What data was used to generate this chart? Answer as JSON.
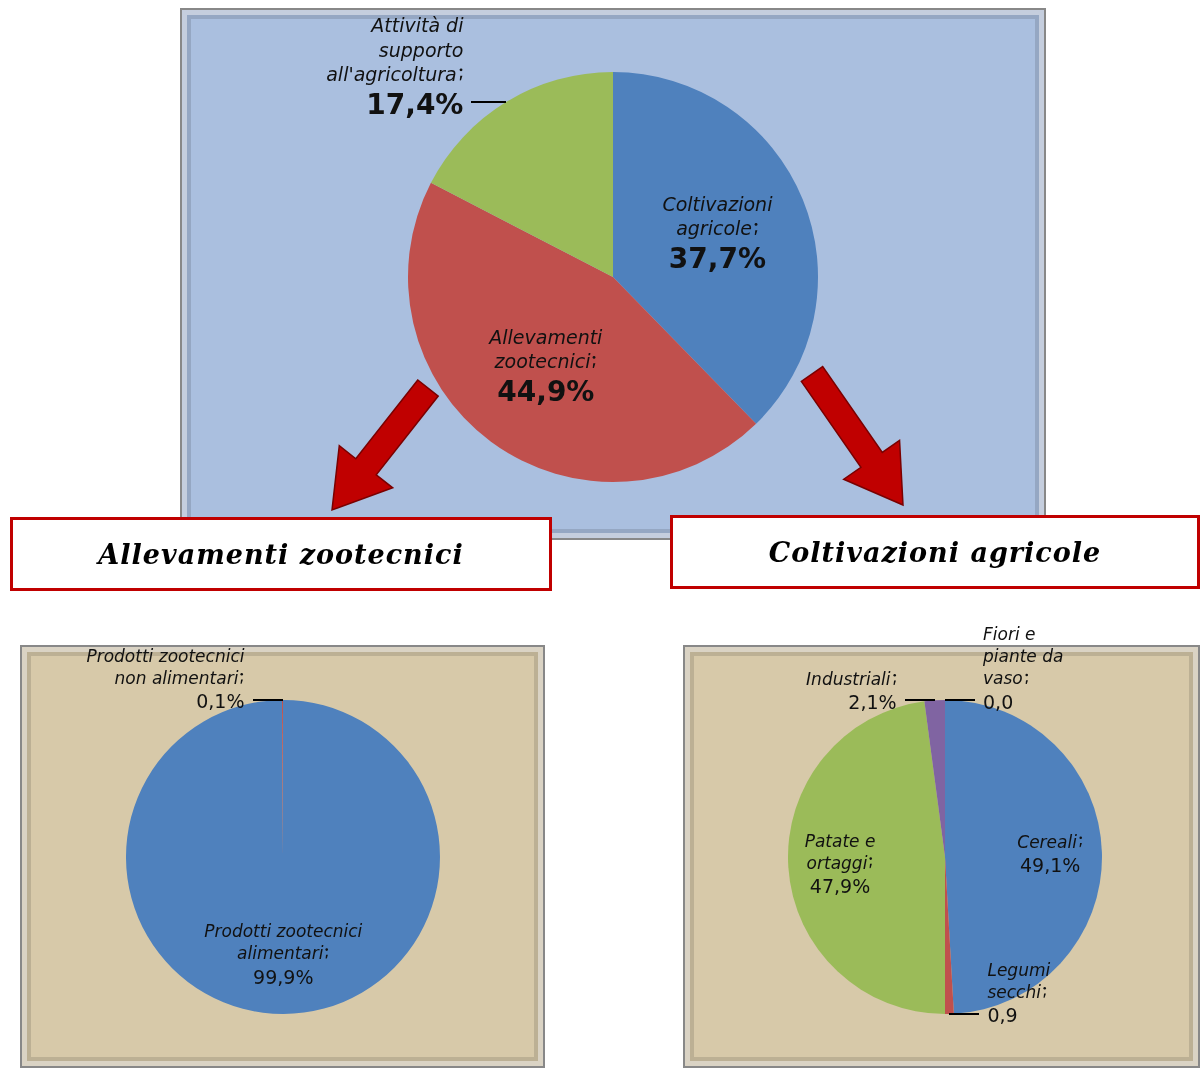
{
  "chart_data": [
    {
      "type": "pie",
      "categories": [
        "Coltivazioni agricole",
        "Allevamenti zootecnici",
        "Attività di supporto all'agricoltura"
      ],
      "values": [
        37.7,
        44.9,
        17.4
      ],
      "value_labels": [
        "37,7%",
        "44,9%",
        "17,4%"
      ],
      "colors": [
        "#4f81bd",
        "#c0504d",
        "#9bbb59"
      ]
    },
    {
      "type": "pie",
      "title": "Allevamenti zootecnici",
      "categories": [
        "Prodotti zootecnici alimentari",
        "Prodotti zootecnici non alimentari"
      ],
      "values": [
        99.9,
        0.1
      ],
      "value_labels": [
        "99,9%",
        "0,1%"
      ],
      "colors": [
        "#4f81bd",
        "#c0504d"
      ]
    },
    {
      "type": "pie",
      "title": "Coltivazioni agricole",
      "categories": [
        "Cereali",
        "Legumi secchi",
        "Patate e ortaggi",
        "Industriali",
        "Fiori e piante da vaso"
      ],
      "values": [
        49.1,
        0.9,
        47.9,
        2.1,
        0.0
      ],
      "value_labels": [
        "49,1%",
        "0,9",
        "47,9%",
        "2,1%",
        "0,0"
      ],
      "colors": [
        "#4f81bd",
        "#c0504d",
        "#9bbb59",
        "#8064a2",
        "#4bacc6"
      ]
    }
  ]
}
